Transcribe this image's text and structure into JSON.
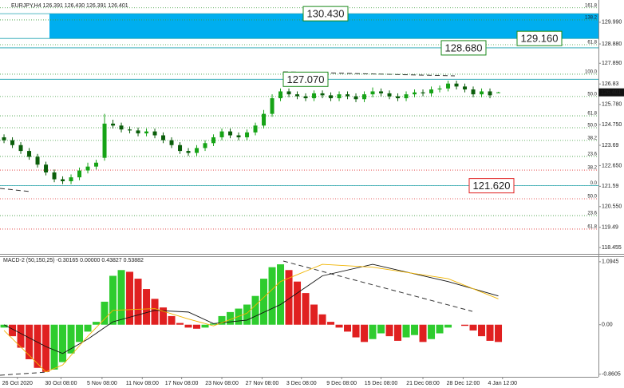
{
  "chart_data": [
    {
      "type": "candlestick",
      "title": "EURJPY,H4  126.391 126.430 126.391 126.401",
      "xlim": [
        -0.48,
        70.95
      ],
      "ylim": [
        118.13,
        131.13
      ],
      "yticks": [
        {
          "value": 129.99,
          "label": "129.990"
        },
        {
          "value": 128.88,
          "label": "128.880"
        },
        {
          "value": 127.89,
          "label": "127.890"
        },
        126.83,
        {
          "value": 125.78,
          "label": "125.780"
        },
        {
          "value": 124.75,
          "label": "124.750"
        },
        123.69,
        {
          "value": 122.65,
          "label": "122.650"
        },
        121.59,
        {
          "value": 120.55,
          "label": "120.550"
        },
        119.49,
        118.455
      ],
      "up_color": "#16a316",
      "down_color": "#0b5e0b",
      "open": [
        124.1,
        123.95,
        123.7,
        123.4,
        123.1,
        122.7,
        122.3,
        121.95,
        121.85,
        122.05,
        122.4,
        122.6,
        123.05,
        124.8,
        124.7,
        124.5,
        124.45,
        124.3,
        124.4,
        124.2,
        123.95,
        123.7,
        123.4,
        123.3,
        123.55,
        123.8,
        124.1,
        124.4,
        124.2,
        124.1,
        124.35,
        124.7,
        125.3,
        126.1,
        126.45,
        126.3,
        126.2,
        126.1,
        126.35,
        126.25,
        126.1,
        126.3,
        126.2,
        126.05,
        126.3,
        126.45,
        126.35,
        126.2,
        126.1,
        126.3,
        126.4,
        126.35,
        126.55,
        126.6,
        126.85,
        126.7,
        126.55,
        126.3,
        126.45,
        126.391
      ],
      "high": [
        124.25,
        124.1,
        123.85,
        123.55,
        123.25,
        122.85,
        122.45,
        122.1,
        122.2,
        122.55,
        122.8,
        122.95,
        125.3,
        125.0,
        124.85,
        124.65,
        124.6,
        124.55,
        124.55,
        124.35,
        124.1,
        123.85,
        123.55,
        123.7,
        123.95,
        124.25,
        124.55,
        124.55,
        124.35,
        124.5,
        124.85,
        125.5,
        126.3,
        126.6,
        126.6,
        126.45,
        126.35,
        126.5,
        126.5,
        126.4,
        126.45,
        126.45,
        126.35,
        126.45,
        126.65,
        126.6,
        126.5,
        126.35,
        126.45,
        126.55,
        126.55,
        126.7,
        126.75,
        127.0,
        127.0,
        126.85,
        126.7,
        126.6,
        126.6,
        126.43
      ],
      "low": [
        123.8,
        123.55,
        123.25,
        122.95,
        122.55,
        122.15,
        121.8,
        121.7,
        121.7,
        121.9,
        122.25,
        122.45,
        122.9,
        124.55,
        124.35,
        124.3,
        124.15,
        124.15,
        124.05,
        123.8,
        123.55,
        123.25,
        123.15,
        123.15,
        123.4,
        123.65,
        123.95,
        124.05,
        123.95,
        123.95,
        124.2,
        124.55,
        125.15,
        125.95,
        126.15,
        126.05,
        125.95,
        125.95,
        126.1,
        125.95,
        125.95,
        126.05,
        125.9,
        125.9,
        126.15,
        126.2,
        126.05,
        125.95,
        125.95,
        126.15,
        126.2,
        126.2,
        126.4,
        126.45,
        126.55,
        126.4,
        126.15,
        126.15,
        126.1,
        126.391
      ],
      "close": [
        123.95,
        123.7,
        123.4,
        123.1,
        122.7,
        122.3,
        121.95,
        121.85,
        122.05,
        122.4,
        122.6,
        122.8,
        124.8,
        124.7,
        124.5,
        124.45,
        124.3,
        124.4,
        124.2,
        123.95,
        123.7,
        123.4,
        123.3,
        123.55,
        123.8,
        124.1,
        124.4,
        124.2,
        124.1,
        124.35,
        124.7,
        125.3,
        126.1,
        126.45,
        126.3,
        126.2,
        126.1,
        126.35,
        126.25,
        126.1,
        126.3,
        126.2,
        126.05,
        126.3,
        126.45,
        126.35,
        126.2,
        126.1,
        126.3,
        126.4,
        126.35,
        126.55,
        126.6,
        126.85,
        126.7,
        126.55,
        126.3,
        126.45,
        126.25,
        126.401
      ],
      "last_price": 126.401,
      "zone": {
        "from": 129.16,
        "to": 130.43,
        "color": "#00aeef"
      },
      "annotations": [
        {
          "value": 130.43,
          "label": "130.430",
          "color": "#1b8a1b"
        },
        {
          "value": 129.16,
          "label": "129.160",
          "color": "#1b8a1b"
        },
        {
          "value": 128.68,
          "label": "128.680",
          "color": "#1b8a1b"
        },
        {
          "value": 127.07,
          "label": "127.070",
          "color": "#1b8a1b"
        },
        {
          "value": 121.62,
          "label": "121.620",
          "color": "#e02020"
        }
      ],
      "levels": [
        {
          "label": "161.8",
          "price": 130.73,
          "color": "#3a9a3a"
        },
        {
          "label": "138.2",
          "price": 130.11,
          "color": "#3a9a3a"
        },
        {
          "label": "61.8",
          "price": 128.84,
          "color": "#3a9a3a"
        },
        {
          "label": "100.0",
          "price": 127.33,
          "color": "#3a9a3a"
        },
        {
          "label": "50.0",
          "price": 126.19,
          "color": "#3a9a3a"
        },
        {
          "label": "61.8",
          "price": 125.2,
          "color": "#3a9a3a"
        },
        {
          "label": "50.0",
          "price": 124.59,
          "color": "#3a9a3a"
        },
        {
          "label": "38.2",
          "price": 123.94,
          "color": "#3a9a3a"
        },
        {
          "label": "23.6",
          "price": 123.12,
          "color": "#3a9a3a"
        },
        {
          "label": "38.2",
          "price": 122.42,
          "color": "#e03030"
        },
        {
          "label": "0.0",
          "price": 121.62,
          "color": "#b8b800"
        },
        {
          "label": "50.0",
          "price": 120.95,
          "color": "#e03030"
        },
        {
          "label": "23.6",
          "price": 120.09,
          "color": "#3a9a3a"
        },
        {
          "label": "61.8",
          "price": 119.4,
          "color": "#e03030"
        }
      ]
    },
    {
      "type": "macd",
      "title": "MACD-2 (50,150,25) -0.30165 0.00000 0.43827 0.53882",
      "xlim": [
        -0.48,
        70.95
      ],
      "ylim": [
        -0.906,
        1.176
      ],
      "yticks": [
        1.0945,
        {
          "value": 0,
          "label": "0.00"
        },
        -0.8605
      ],
      "up_color": "#2ecc2e",
      "down_color": "#e02020",
      "values": [
        -0.05,
        -0.2,
        -0.4,
        -0.6,
        -0.75,
        -0.82,
        -0.78,
        -0.65,
        -0.5,
        -0.3,
        -0.12,
        0.05,
        0.4,
        0.85,
        0.95,
        0.92,
        0.8,
        0.62,
        0.45,
        0.3,
        0.15,
        0.03,
        -0.05,
        -0.07,
        -0.05,
        0.02,
        0.15,
        0.22,
        0.28,
        0.35,
        0.5,
        0.8,
        1.0,
        1.05,
        0.95,
        0.75,
        0.55,
        0.35,
        0.18,
        0.05,
        -0.05,
        -0.12,
        -0.22,
        -0.3,
        -0.25,
        -0.15,
        -0.2,
        -0.28,
        -0.22,
        -0.18,
        -0.3,
        -0.25,
        -0.15,
        -0.05,
        0.0,
        -0.02,
        -0.1,
        -0.2,
        -0.28,
        -0.3
      ],
      "lines": [
        {
          "color": "#111111",
          "x": [
            0,
            5,
            7,
            10,
            13,
            18,
            22,
            25,
            29,
            33,
            38,
            44,
            53,
            59
          ],
          "values": [
            0.0,
            -0.38,
            -0.5,
            -0.25,
            0.05,
            0.25,
            0.22,
            0.02,
            0.08,
            0.35,
            0.85,
            1.05,
            0.75,
            0.5
          ]
        },
        {
          "color": "#f0b400",
          "x": [
            0,
            5,
            7,
            10,
            13,
            18,
            22,
            25,
            29,
            33,
            38,
            44,
            53,
            59
          ],
          "values": [
            -0.1,
            -0.82,
            -0.7,
            -0.2,
            0.25,
            0.28,
            0.1,
            -0.02,
            0.2,
            0.75,
            1.05,
            1.0,
            0.8,
            0.45
          ]
        }
      ],
      "xticks": [
        {
          "value": 1.6,
          "label": "26 Oct 2020"
        },
        {
          "value": 6.8,
          "label": "30 Oct 08:00"
        },
        {
          "value": 11.7,
          "label": "5 Nov 08:00"
        },
        {
          "value": 16.5,
          "label": "11 Nov 08:00"
        },
        {
          "value": 21.2,
          "label": "17 Nov 08:00"
        },
        {
          "value": 26,
          "label": "23 Nov 08:00"
        },
        {
          "value": 30.8,
          "label": "27 Nov 08:00"
        },
        {
          "value": 35.5,
          "label": "3 Dec 08:00"
        },
        {
          "value": 40.3,
          "label": "9 Dec 08:00"
        },
        {
          "value": 45,
          "label": "15 Dec 08:00"
        },
        {
          "value": 50,
          "label": "21 Dec 08:00"
        },
        {
          "value": 54.8,
          "label": "28 Dec 12:00"
        },
        {
          "value": 59.5,
          "label": "4 Jan 12:00"
        }
      ]
    }
  ]
}
